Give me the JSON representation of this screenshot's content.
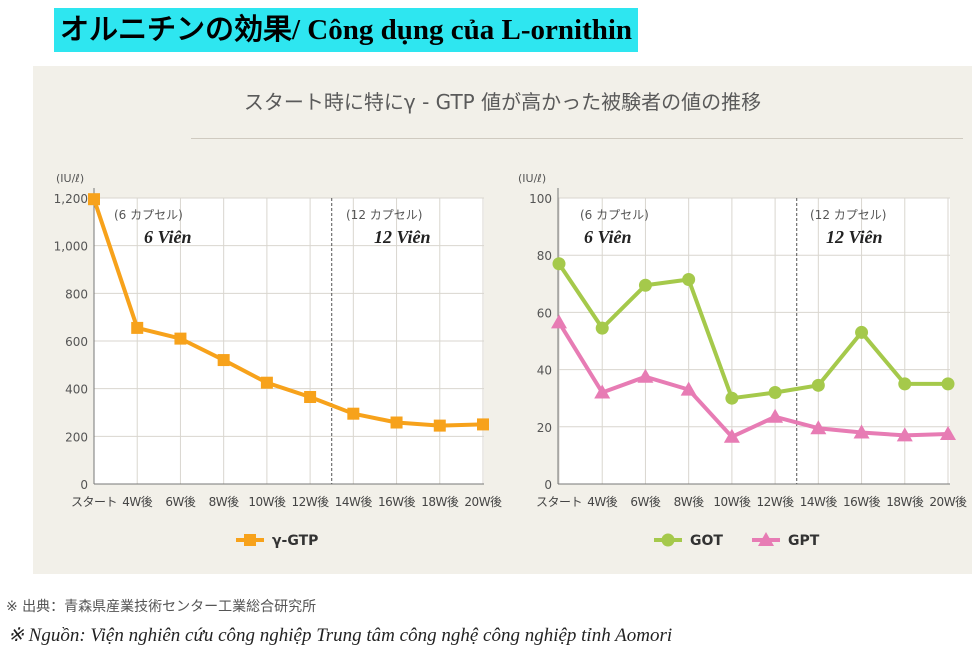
{
  "header": {
    "title": "オルニチンの効果/ Công dụng của L-ornithin"
  },
  "panel": {
    "title": "スタート時に特にγ - GTP 値が高かった被験者の値の推移"
  },
  "source": {
    "jp": "※ 出典：青森県産業技術センター工業総合研究所",
    "vn": "※ Nguồn: Viện nghiên cứu công nghiệp Trung tâm công nghệ công nghiệp tỉnh Aomori"
  },
  "chart_data": [
    {
      "type": "line",
      "unit_label": "(IU/ℓ)",
      "categories": [
        "スタート",
        "4W後",
        "6W後",
        "8W後",
        "10W後",
        "12W後",
        "14W後",
        "16W後",
        "18W後",
        "20W後"
      ],
      "ylim": [
        0,
        1200
      ],
      "yticks": [
        0,
        200,
        400,
        600,
        800,
        1000,
        1200
      ],
      "ytick_labels": [
        "0",
        "200",
        "400",
        "600",
        "800",
        "1,000",
        "1,200"
      ],
      "grid": true,
      "divider_after": "12W後",
      "period_labels": [
        {
          "jp": "(6 カプセル)",
          "vn": "6 Viên"
        },
        {
          "jp": "(12 カプセル)",
          "vn": "12 Viên"
        }
      ],
      "series": [
        {
          "name": "γ-GTP",
          "color": "#f7a21b",
          "marker": "square",
          "values": [
            1195,
            655,
            610,
            520,
            425,
            365,
            295,
            258,
            245,
            250
          ]
        }
      ],
      "legend": "bottom"
    },
    {
      "type": "line",
      "unit_label": "(IU/ℓ)",
      "categories": [
        "スタート",
        "4W後",
        "6W後",
        "8W後",
        "10W後",
        "12W後",
        "14W後",
        "16W後",
        "18W後",
        "20W後"
      ],
      "ylim": [
        0,
        100
      ],
      "yticks": [
        0,
        20,
        40,
        60,
        80,
        100
      ],
      "ytick_labels": [
        "0",
        "20",
        "40",
        "60",
        "80",
        "100"
      ],
      "grid": true,
      "divider_after": "12W後",
      "period_labels": [
        {
          "jp": "(6 カプセル)",
          "vn": "6 Viên"
        },
        {
          "jp": "(12 カプセル)",
          "vn": "12 Viên"
        }
      ],
      "series": [
        {
          "name": "GOT",
          "color": "#a5c94b",
          "marker": "circle",
          "values": [
            77,
            54.5,
            69.5,
            71.5,
            30,
            32,
            34.5,
            53,
            35,
            35
          ]
        },
        {
          "name": "GPT",
          "color": "#e77cb4",
          "marker": "triangle",
          "values": [
            56.5,
            32,
            37.5,
            33,
            16.5,
            23.5,
            19.5,
            18,
            17,
            17.5
          ]
        }
      ],
      "legend": "bottom"
    }
  ]
}
